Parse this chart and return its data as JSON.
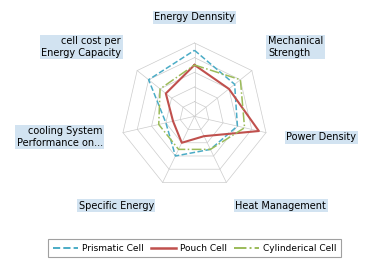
{
  "categories": [
    "Energy Dennsity",
    "Mechanical\nStrength",
    "Power Density",
    "Heat Management",
    "Specific Energy",
    "cooling System\nPerformance on...",
    "cell cost per\nEnergy Capacity"
  ],
  "num_vars": 7,
  "series": {
    "Prismatic Cell": [
      9,
      7,
      6,
      5,
      6,
      4,
      8
    ],
    "Pouch Cell": [
      7,
      6,
      9,
      3,
      4,
      3,
      5
    ],
    "Cylinderical Cell": [
      7,
      8,
      7,
      5,
      5,
      5,
      6
    ]
  },
  "colors": {
    "Prismatic Cell": "#4bacc6",
    "Pouch Cell": "#c0504d",
    "Cylinderical Cell": "#9bbb59"
  },
  "linestyles": {
    "Prismatic Cell": "--",
    "Pouch Cell": "-",
    "Cylinderical Cell": "-."
  },
  "max_val": 10,
  "grid_levels": 5,
  "background_color": "#ffffff",
  "label_bg_color": "#cde0f0",
  "label_fontsize": 7.0,
  "grid_color": "#cccccc",
  "grid_linewidth": 0.5
}
